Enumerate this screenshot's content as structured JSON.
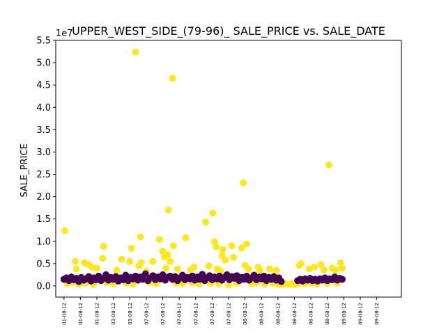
{
  "chart_data": {
    "type": "scatter",
    "title": "UPPER_WEST_SIDE_(79-96)_ SALE_PRICE vs. SALE_DATE",
    "xlabel": "",
    "ylabel": "SALE_PRICE",
    "offset_label": "1e7",
    "ylim": [
      -0.25,
      5.5
    ],
    "yticks": [
      0.0,
      0.5,
      1.0,
      1.5,
      2.0,
      2.5,
      3.0,
      3.5,
      4.0,
      4.5,
      5.0,
      5.5
    ],
    "ytick_labels": [
      "0.0",
      "0.5",
      "1.0",
      "1.5",
      "2.0",
      "2.5",
      "3.0",
      "3.5",
      "4.0",
      "4.5",
      "5.0",
      "5.5"
    ],
    "xlim": [
      -0.5,
      20.5
    ],
    "xtick_positions": [
      0,
      1,
      2,
      3,
      4,
      5,
      6,
      7,
      8,
      9,
      10,
      11,
      12,
      13,
      14,
      15,
      16,
      17,
      18,
      19
    ],
    "xtick_labels": [
      "01-08-12",
      "01-08-12",
      "01-08-12",
      "03-08-12",
      "03-08-12",
      "07-08-12",
      "07-08-12",
      "07-08-12",
      "07-08-12",
      "07-08-12",
      "07-08-12",
      "08-08-12",
      "08-08-12",
      "08-08-12",
      "08-08-12",
      "08-08-12",
      "08-08-12",
      "09-08-12",
      "09-08-12",
      "09-08-12"
    ],
    "grid": false,
    "legend": "none",
    "colors": {
      "high": "#fde725",
      "low": "#440154"
    },
    "series": [
      {
        "color": "#fde725",
        "points": [
          [
            0.05,
            1.24
          ],
          [
            0.7,
            0.55
          ],
          [
            0.75,
            0.38
          ],
          [
            1.25,
            0.52
          ],
          [
            1.5,
            0.48
          ],
          [
            1.7,
            0.42
          ],
          [
            2.0,
            0.4
          ],
          [
            2.4,
            0.89
          ],
          [
            2.35,
            0.62
          ],
          [
            3.2,
            0.35
          ],
          [
            3.5,
            0.6
          ],
          [
            4.0,
            0.55
          ],
          [
            4.1,
            0.84
          ],
          [
            4.35,
            5.24
          ],
          [
            4.55,
            0.45
          ],
          [
            4.65,
            1.1
          ],
          [
            4.7,
            0.52
          ],
          [
            5.0,
            0.33
          ],
          [
            5.4,
            0.55
          ],
          [
            5.8,
            1.04
          ],
          [
            6.0,
            0.78
          ],
          [
            6.1,
            0.65
          ],
          [
            6.2,
            0.4
          ],
          [
            6.3,
            0.7
          ],
          [
            6.35,
            1.7
          ],
          [
            6.45,
            0.55
          ],
          [
            6.6,
            4.65
          ],
          [
            6.65,
            0.9
          ],
          [
            6.9,
            0.38
          ],
          [
            7.4,
            1.08
          ],
          [
            7.7,
            0.36
          ],
          [
            7.9,
            0.42
          ],
          [
            8.6,
            1.43
          ],
          [
            8.8,
            0.45
          ],
          [
            9.05,
            1.63
          ],
          [
            9.15,
            0.99
          ],
          [
            9.25,
            0.88
          ],
          [
            9.3,
            0.38
          ],
          [
            9.5,
            0.34
          ],
          [
            9.6,
            0.68
          ],
          [
            9.65,
            0.82
          ],
          [
            9.8,
            0.58
          ],
          [
            10.2,
            0.9
          ],
          [
            10.3,
            0.64
          ],
          [
            10.8,
            0.85
          ],
          [
            10.9,
            2.31
          ],
          [
            11.0,
            0.46
          ],
          [
            11.1,
            0.94
          ],
          [
            11.2,
            0.38
          ],
          [
            11.8,
            0.42
          ],
          [
            11.9,
            0.35
          ],
          [
            12.5,
            0.38
          ],
          [
            12.9,
            0.35
          ],
          [
            14.2,
            0.05
          ],
          [
            14.3,
            0.46
          ],
          [
            14.4,
            0.5
          ],
          [
            14.9,
            0.38
          ],
          [
            15.2,
            0.42
          ],
          [
            15.6,
            0.48
          ],
          [
            15.8,
            0.36
          ],
          [
            16.1,
            2.71
          ],
          [
            16.3,
            0.4
          ],
          [
            16.5,
            0.35
          ],
          [
            16.8,
            0.52
          ],
          [
            16.9,
            0.4
          ],
          [
            0.2,
            0.05
          ],
          [
            0.5,
            0.08
          ],
          [
            0.9,
            0.04
          ],
          [
            1.3,
            0.06
          ],
          [
            1.8,
            0.03
          ],
          [
            2.6,
            0.07
          ],
          [
            3.0,
            0.05
          ],
          [
            3.8,
            0.06
          ],
          [
            4.2,
            0.04
          ],
          [
            5.2,
            0.08
          ],
          [
            5.6,
            0.05
          ],
          [
            6.8,
            0.06
          ],
          [
            7.2,
            0.05
          ],
          [
            7.8,
            0.07
          ],
          [
            8.2,
            0.04
          ],
          [
            8.9,
            0.06
          ],
          [
            9.4,
            0.05
          ],
          [
            10.0,
            0.02
          ],
          [
            10.5,
            0.06
          ],
          [
            11.4,
            0.05
          ],
          [
            11.7,
            0.07
          ],
          [
            12.2,
            0.04
          ],
          [
            12.7,
            0.06
          ],
          [
            13.0,
            0.04
          ],
          [
            13.2,
            0.03
          ],
          [
            13.4,
            0.05
          ],
          [
            13.6,
            0.04
          ],
          [
            13.8,
            0.05
          ],
          [
            14.0,
            0.03
          ],
          [
            14.6,
            0.05
          ],
          [
            15.0,
            0.06
          ],
          [
            15.4,
            0.04
          ],
          [
            16.0,
            0.05
          ],
          [
            16.6,
            0.06
          ]
        ]
      },
      {
        "color": "#440154",
        "points": [
          [
            0.0,
            0.15
          ],
          [
            0.15,
            0.18
          ],
          [
            0.3,
            0.12
          ],
          [
            0.45,
            0.2
          ],
          [
            0.6,
            0.14
          ],
          [
            0.75,
            0.17
          ],
          [
            0.9,
            0.1
          ],
          [
            1.05,
            0.19
          ],
          [
            1.2,
            0.13
          ],
          [
            1.35,
            0.16
          ],
          [
            1.5,
            0.21
          ],
          [
            1.65,
            0.11
          ],
          [
            1.8,
            0.18
          ],
          [
            1.95,
            0.14
          ],
          [
            2.1,
            0.22
          ],
          [
            2.25,
            0.12
          ],
          [
            2.4,
            0.17
          ],
          [
            2.55,
            0.25
          ],
          [
            2.7,
            0.13
          ],
          [
            2.85,
            0.19
          ],
          [
            3.0,
            0.15
          ],
          [
            3.15,
            0.21
          ],
          [
            3.3,
            0.11
          ],
          [
            3.45,
            0.18
          ],
          [
            3.6,
            0.14
          ],
          [
            3.75,
            0.24
          ],
          [
            3.9,
            0.12
          ],
          [
            4.05,
            0.19
          ],
          [
            4.2,
            0.16
          ],
          [
            4.35,
            0.22
          ],
          [
            4.5,
            0.13
          ],
          [
            4.65,
            0.2
          ],
          [
            4.8,
            0.15
          ],
          [
            4.95,
            0.27
          ],
          [
            5.1,
            0.12
          ],
          [
            5.25,
            0.18
          ],
          [
            5.4,
            0.23
          ],
          [
            5.55,
            0.14
          ],
          [
            5.7,
            0.2
          ],
          [
            5.85,
            0.16
          ],
          [
            6.0,
            0.25
          ],
          [
            6.15,
            0.13
          ],
          [
            6.3,
            0.19
          ],
          [
            6.45,
            0.22
          ],
          [
            6.6,
            0.15
          ],
          [
            6.75,
            0.21
          ],
          [
            6.9,
            0.12
          ],
          [
            7.05,
            0.18
          ],
          [
            7.2,
            0.24
          ],
          [
            7.35,
            0.14
          ],
          [
            7.5,
            0.19
          ],
          [
            7.65,
            0.16
          ],
          [
            7.8,
            0.22
          ],
          [
            7.95,
            0.13
          ],
          [
            8.1,
            0.2
          ],
          [
            8.25,
            0.15
          ],
          [
            8.4,
            0.26
          ],
          [
            8.55,
            0.12
          ],
          [
            8.7,
            0.18
          ],
          [
            8.85,
            0.23
          ],
          [
            9.0,
            0.14
          ],
          [
            9.15,
            0.2
          ],
          [
            9.3,
            0.16
          ],
          [
            9.45,
            0.22
          ],
          [
            9.6,
            0.13
          ],
          [
            9.75,
            0.19
          ],
          [
            9.9,
            0.25
          ],
          [
            10.05,
            0.14
          ],
          [
            10.2,
            0.21
          ],
          [
            10.35,
            0.17
          ],
          [
            10.5,
            0.23
          ],
          [
            10.65,
            0.12
          ],
          [
            10.8,
            0.19
          ],
          [
            10.95,
            0.15
          ],
          [
            11.1,
            0.22
          ],
          [
            11.25,
            0.13
          ],
          [
            11.4,
            0.18
          ],
          [
            11.55,
            0.24
          ],
          [
            11.7,
            0.14
          ],
          [
            11.85,
            0.2
          ],
          [
            12.0,
            0.16
          ],
          [
            12.15,
            0.22
          ],
          [
            12.3,
            0.12
          ],
          [
            12.45,
            0.19
          ],
          [
            12.6,
            0.15
          ],
          [
            12.75,
            0.21
          ],
          [
            12.9,
            0.13
          ],
          [
            13.05,
            0.18
          ],
          [
            13.2,
            0.1
          ],
          [
            14.2,
            0.12
          ],
          [
            14.35,
            0.15
          ],
          [
            14.5,
            0.11
          ],
          [
            14.65,
            0.16
          ],
          [
            14.8,
            0.13
          ],
          [
            14.95,
            0.17
          ],
          [
            15.1,
            0.12
          ],
          [
            15.25,
            0.15
          ],
          [
            15.4,
            0.11
          ],
          [
            15.55,
            0.16
          ],
          [
            15.7,
            0.13
          ],
          [
            15.85,
            0.18
          ],
          [
            16.0,
            0.12
          ],
          [
            16.15,
            0.16
          ],
          [
            16.3,
            0.14
          ],
          [
            16.45,
            0.2
          ],
          [
            16.6,
            0.13
          ],
          [
            16.75,
            0.17
          ],
          [
            16.9,
            0.15
          ]
        ]
      }
    ]
  }
}
